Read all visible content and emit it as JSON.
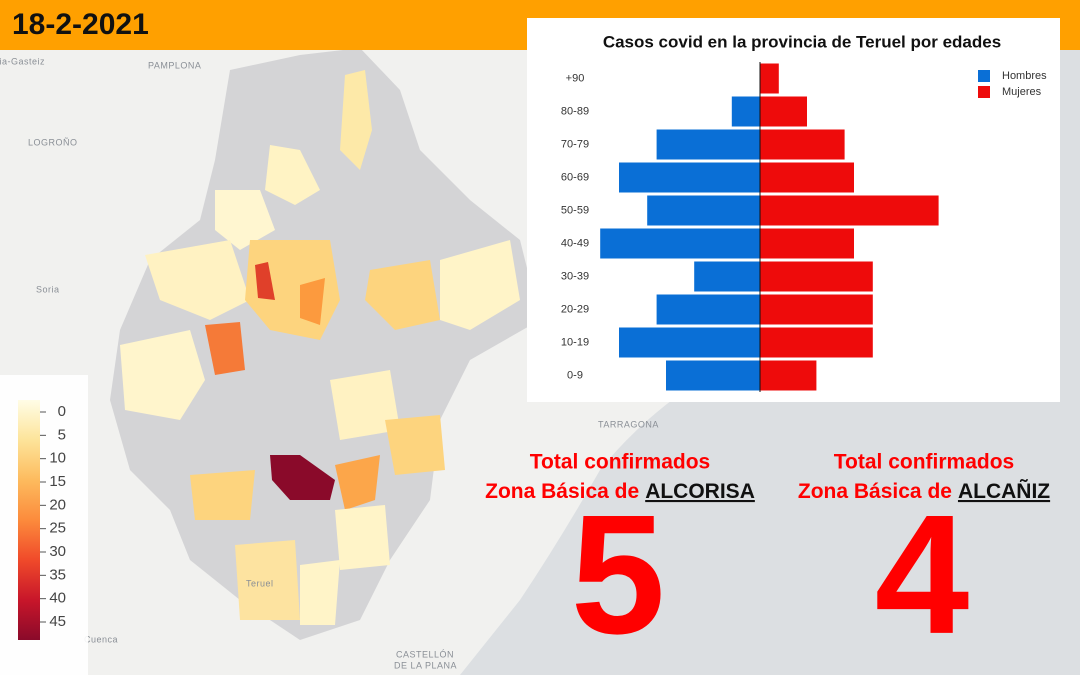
{
  "header": {
    "date": "18-2-2021"
  },
  "map": {
    "place_labels": [
      "ria-Gasteiz",
      "PAMPLONA",
      "LOGROÑO",
      "Soria",
      "TARRAGONA",
      "Teruel",
      "Cuenca",
      "CASTELLÓN",
      "DE LA PLANA"
    ],
    "scale": {
      "ticks": [
        0,
        5,
        10,
        15,
        20,
        25,
        30,
        35,
        40,
        45
      ],
      "colors": [
        "#fffde6",
        "#fde49a",
        "#fdbb5e",
        "#fc8b3c",
        "#f04a2a",
        "#c8162a",
        "#8a0a2a"
      ]
    }
  },
  "chart_data": {
    "type": "pyramid",
    "title": "Casos covid en la provincia de Teruel por edades",
    "categories": [
      "+90",
      "80-89",
      "70-79",
      "60-69",
      "50-59",
      "40-49",
      "30-39",
      "20-29",
      "10-19",
      "0-9"
    ],
    "series": [
      {
        "name": "Hombres",
        "color": "#0a6fd6",
        "values": [
          0,
          3,
          11,
          15,
          12,
          17,
          7,
          11,
          15,
          10
        ]
      },
      {
        "name": "Mujeres",
        "color": "#ee0b0b",
        "values": [
          2,
          5,
          9,
          10,
          19,
          10,
          12,
          12,
          12,
          6
        ]
      }
    ]
  },
  "totals": [
    {
      "line1": "Total confirmados",
      "prefix": "Zona Básica de",
      "zone": "ALCORISA",
      "value": 5
    },
    {
      "line1": "Total confirmados",
      "prefix": "Zona Básica de",
      "zone": "ALCAÑIZ",
      "value": 4
    }
  ]
}
